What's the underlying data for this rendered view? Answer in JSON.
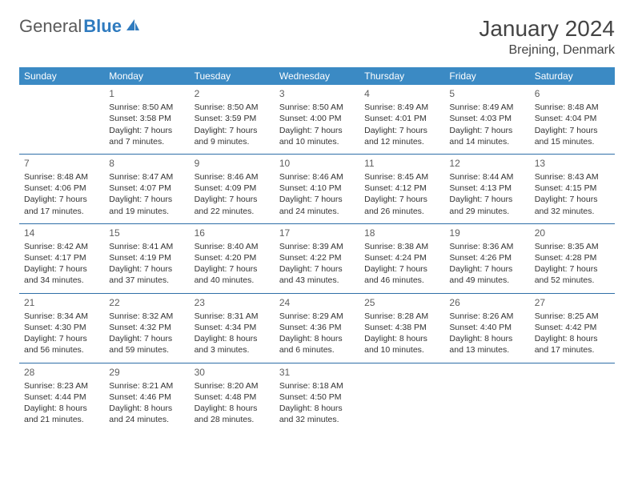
{
  "logo": {
    "text1": "General",
    "text2": "Blue"
  },
  "title": "January 2024",
  "location": "Brejning, Denmark",
  "day_headers": [
    "Sunday",
    "Monday",
    "Tuesday",
    "Wednesday",
    "Thursday",
    "Friday",
    "Saturday"
  ],
  "colors": {
    "header_bg": "#3b8ac4",
    "header_text": "#ffffff",
    "rule": "#2f6fa8",
    "text": "#333333",
    "title_text": "#444444",
    "logo_gray": "#5a5a5a",
    "logo_blue": "#2f7bbf",
    "background": "#ffffff"
  },
  "weeks": [
    [
      {
        "n": "",
        "sr": "",
        "ss": "",
        "dl": ""
      },
      {
        "n": "1",
        "sr": "Sunrise: 8:50 AM",
        "ss": "Sunset: 3:58 PM",
        "dl": "Daylight: 7 hours and 7 minutes."
      },
      {
        "n": "2",
        "sr": "Sunrise: 8:50 AM",
        "ss": "Sunset: 3:59 PM",
        "dl": "Daylight: 7 hours and 9 minutes."
      },
      {
        "n": "3",
        "sr": "Sunrise: 8:50 AM",
        "ss": "Sunset: 4:00 PM",
        "dl": "Daylight: 7 hours and 10 minutes."
      },
      {
        "n": "4",
        "sr": "Sunrise: 8:49 AM",
        "ss": "Sunset: 4:01 PM",
        "dl": "Daylight: 7 hours and 12 minutes."
      },
      {
        "n": "5",
        "sr": "Sunrise: 8:49 AM",
        "ss": "Sunset: 4:03 PM",
        "dl": "Daylight: 7 hours and 14 minutes."
      },
      {
        "n": "6",
        "sr": "Sunrise: 8:48 AM",
        "ss": "Sunset: 4:04 PM",
        "dl": "Daylight: 7 hours and 15 minutes."
      }
    ],
    [
      {
        "n": "7",
        "sr": "Sunrise: 8:48 AM",
        "ss": "Sunset: 4:06 PM",
        "dl": "Daylight: 7 hours and 17 minutes."
      },
      {
        "n": "8",
        "sr": "Sunrise: 8:47 AM",
        "ss": "Sunset: 4:07 PM",
        "dl": "Daylight: 7 hours and 19 minutes."
      },
      {
        "n": "9",
        "sr": "Sunrise: 8:46 AM",
        "ss": "Sunset: 4:09 PM",
        "dl": "Daylight: 7 hours and 22 minutes."
      },
      {
        "n": "10",
        "sr": "Sunrise: 8:46 AM",
        "ss": "Sunset: 4:10 PM",
        "dl": "Daylight: 7 hours and 24 minutes."
      },
      {
        "n": "11",
        "sr": "Sunrise: 8:45 AM",
        "ss": "Sunset: 4:12 PM",
        "dl": "Daylight: 7 hours and 26 minutes."
      },
      {
        "n": "12",
        "sr": "Sunrise: 8:44 AM",
        "ss": "Sunset: 4:13 PM",
        "dl": "Daylight: 7 hours and 29 minutes."
      },
      {
        "n": "13",
        "sr": "Sunrise: 8:43 AM",
        "ss": "Sunset: 4:15 PM",
        "dl": "Daylight: 7 hours and 32 minutes."
      }
    ],
    [
      {
        "n": "14",
        "sr": "Sunrise: 8:42 AM",
        "ss": "Sunset: 4:17 PM",
        "dl": "Daylight: 7 hours and 34 minutes."
      },
      {
        "n": "15",
        "sr": "Sunrise: 8:41 AM",
        "ss": "Sunset: 4:19 PM",
        "dl": "Daylight: 7 hours and 37 minutes."
      },
      {
        "n": "16",
        "sr": "Sunrise: 8:40 AM",
        "ss": "Sunset: 4:20 PM",
        "dl": "Daylight: 7 hours and 40 minutes."
      },
      {
        "n": "17",
        "sr": "Sunrise: 8:39 AM",
        "ss": "Sunset: 4:22 PM",
        "dl": "Daylight: 7 hours and 43 minutes."
      },
      {
        "n": "18",
        "sr": "Sunrise: 8:38 AM",
        "ss": "Sunset: 4:24 PM",
        "dl": "Daylight: 7 hours and 46 minutes."
      },
      {
        "n": "19",
        "sr": "Sunrise: 8:36 AM",
        "ss": "Sunset: 4:26 PM",
        "dl": "Daylight: 7 hours and 49 minutes."
      },
      {
        "n": "20",
        "sr": "Sunrise: 8:35 AM",
        "ss": "Sunset: 4:28 PM",
        "dl": "Daylight: 7 hours and 52 minutes."
      }
    ],
    [
      {
        "n": "21",
        "sr": "Sunrise: 8:34 AM",
        "ss": "Sunset: 4:30 PM",
        "dl": "Daylight: 7 hours and 56 minutes."
      },
      {
        "n": "22",
        "sr": "Sunrise: 8:32 AM",
        "ss": "Sunset: 4:32 PM",
        "dl": "Daylight: 7 hours and 59 minutes."
      },
      {
        "n": "23",
        "sr": "Sunrise: 8:31 AM",
        "ss": "Sunset: 4:34 PM",
        "dl": "Daylight: 8 hours and 3 minutes."
      },
      {
        "n": "24",
        "sr": "Sunrise: 8:29 AM",
        "ss": "Sunset: 4:36 PM",
        "dl": "Daylight: 8 hours and 6 minutes."
      },
      {
        "n": "25",
        "sr": "Sunrise: 8:28 AM",
        "ss": "Sunset: 4:38 PM",
        "dl": "Daylight: 8 hours and 10 minutes."
      },
      {
        "n": "26",
        "sr": "Sunrise: 8:26 AM",
        "ss": "Sunset: 4:40 PM",
        "dl": "Daylight: 8 hours and 13 minutes."
      },
      {
        "n": "27",
        "sr": "Sunrise: 8:25 AM",
        "ss": "Sunset: 4:42 PM",
        "dl": "Daylight: 8 hours and 17 minutes."
      }
    ],
    [
      {
        "n": "28",
        "sr": "Sunrise: 8:23 AM",
        "ss": "Sunset: 4:44 PM",
        "dl": "Daylight: 8 hours and 21 minutes."
      },
      {
        "n": "29",
        "sr": "Sunrise: 8:21 AM",
        "ss": "Sunset: 4:46 PM",
        "dl": "Daylight: 8 hours and 24 minutes."
      },
      {
        "n": "30",
        "sr": "Sunrise: 8:20 AM",
        "ss": "Sunset: 4:48 PM",
        "dl": "Daylight: 8 hours and 28 minutes."
      },
      {
        "n": "31",
        "sr": "Sunrise: 8:18 AM",
        "ss": "Sunset: 4:50 PM",
        "dl": "Daylight: 8 hours and 32 minutes."
      },
      {
        "n": "",
        "sr": "",
        "ss": "",
        "dl": ""
      },
      {
        "n": "",
        "sr": "",
        "ss": "",
        "dl": ""
      },
      {
        "n": "",
        "sr": "",
        "ss": "",
        "dl": ""
      }
    ]
  ]
}
